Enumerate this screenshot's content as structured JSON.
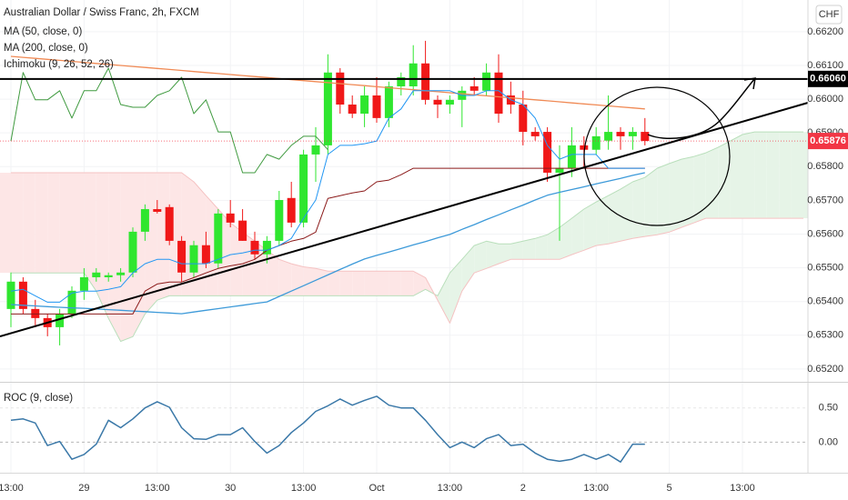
{
  "chart_data": [
    {
      "type": "candlestick",
      "title": "Australian Dollar / Swiss Franc, 2h, FXCM",
      "currency": "CHF",
      "categories": [
        "13:00",
        null,
        null,
        null,
        null,
        null,
        "29",
        null,
        null,
        null,
        null,
        null,
        "13:00",
        null,
        null,
        null,
        null,
        null,
        "30",
        null,
        null,
        null,
        null,
        null,
        "13:00",
        null,
        null,
        null,
        null,
        null,
        "Oct",
        null,
        null,
        null,
        null,
        null,
        "13:00",
        null,
        null,
        null,
        null,
        null,
        "2",
        null,
        null,
        null,
        null,
        null,
        "13:00",
        null,
        null,
        null,
        null,
        null,
        "5",
        null,
        null,
        null,
        null,
        null,
        "13:00",
        null,
        null,
        null,
        null,
        null
      ],
      "open": [
        0.65378,
        0.65459,
        0.65378,
        0.65351,
        0.65324,
        0.65364,
        0.65432,
        0.65472,
        0.65472,
        0.65478,
        0.65486,
        0.65607,
        0.65674,
        0.6568,
        0.6558,
        0.65486,
        0.65567,
        0.65513,
        0.65661,
        0.6564,
        0.6558,
        0.6554,
        0.6558,
        0.65707,
        0.65634,
        0.65836,
        0.65863,
        0.66079,
        0.65984,
        0.65957,
        0.66011,
        0.65944,
        0.66038,
        0.66038,
        0.66106,
        0.65998,
        0.65984,
        0.65998,
        0.66038,
        0.66025,
        0.66079,
        0.66011,
        0.65984,
        0.65903,
        0.65903,
        0.65782,
        0.65796,
        0.65863,
        0.6585,
        0.65877,
        0.65903,
        0.6589,
        0.65903,
        null,
        null,
        null,
        null,
        null,
        null,
        null,
        null,
        null,
        null,
        null,
        null,
        null
      ],
      "high": [
        0.65486,
        0.65472,
        0.65405,
        0.65364,
        0.65378,
        0.65445,
        0.65499,
        0.65499,
        0.65486,
        0.65499,
        0.6562,
        0.65688,
        0.65701,
        0.65688,
        0.65594,
        0.6558,
        0.65607,
        0.65674,
        0.65701,
        0.65674,
        0.65607,
        0.65594,
        0.65728,
        0.65755,
        0.6585,
        0.65917,
        0.66133,
        0.66092,
        0.66011,
        0.66038,
        0.66065,
        0.66052,
        0.66079,
        0.6616,
        0.66173,
        0.66011,
        0.66011,
        0.66038,
        0.66065,
        0.66106,
        0.66133,
        0.66052,
        0.66025,
        0.65917,
        0.65917,
        0.65863,
        0.65917,
        0.6589,
        0.65917,
        0.66011,
        0.65917,
        0.65917,
        0.65944,
        null,
        null,
        null,
        null,
        null,
        null,
        null,
        null,
        null,
        null,
        null,
        null,
        null
      ],
      "low": [
        0.65324,
        0.65364,
        0.65324,
        0.65297,
        0.6527,
        0.65351,
        0.65405,
        0.65459,
        0.65459,
        0.65459,
        0.65472,
        0.6558,
        0.65661,
        0.65567,
        0.65459,
        0.65472,
        0.65499,
        0.65499,
        0.6562,
        0.6558,
        0.65526,
        0.65513,
        0.65567,
        0.6562,
        0.6562,
        0.65755,
        0.65836,
        0.65957,
        0.65944,
        0.65917,
        0.6593,
        0.65917,
        0.66011,
        0.66011,
        0.65984,
        0.65944,
        0.65957,
        0.65917,
        0.66011,
        0.66011,
        0.6593,
        0.65957,
        0.65863,
        0.65877,
        0.65755,
        0.6558,
        0.65769,
        0.65796,
        0.65836,
        0.6585,
        0.6585,
        0.6585,
        0.65863,
        null,
        null,
        null,
        null,
        null,
        null,
        null,
        null,
        null,
        null,
        null,
        null,
        null
      ],
      "close": [
        0.65459,
        0.65378,
        0.65351,
        0.65324,
        0.65364,
        0.65432,
        0.65472,
        0.65486,
        0.65478,
        0.65486,
        0.65607,
        0.65674,
        0.65666,
        0.6558,
        0.65486,
        0.65567,
        0.65513,
        0.65661,
        0.65634,
        0.6558,
        0.6554,
        0.6558,
        0.65701,
        0.65634,
        0.65836,
        0.65863,
        0.66079,
        0.65984,
        0.65957,
        0.66011,
        0.65944,
        0.66038,
        0.66065,
        0.66106,
        0.65998,
        0.65984,
        0.65998,
        0.66025,
        0.66025,
        0.66079,
        0.65957,
        0.65984,
        0.65903,
        0.6589,
        0.65782,
        0.65796,
        0.65863,
        0.6585,
        0.6589,
        0.65903,
        0.6589,
        0.65903,
        0.65876,
        null,
        null,
        null,
        null,
        null,
        null,
        null,
        null,
        null,
        null,
        null,
        null,
        null
      ],
      "up_color": "#2fe62f",
      "down_color": "#f01818",
      "series": [
        {
          "name": "MA (50, close, 0)",
          "color": "#3d9ad9",
          "values": [
            0.65391,
            0.65389,
            0.65387,
            0.65385,
            0.65383,
            0.65381,
            0.6538,
            0.65378,
            0.65376,
            0.65374,
            0.65372,
            0.6537,
            0.65368,
            0.65366,
            0.65364,
            0.65369,
            0.65374,
            0.65379,
            0.65384,
            0.65389,
            0.65394,
            0.65399,
            0.65415,
            0.65431,
            0.65447,
            0.65463,
            0.65479,
            0.65495,
            0.65511,
            0.65526,
            0.65537,
            0.65547,
            0.65557,
            0.65568,
            0.65578,
            0.65589,
            0.65599,
            0.65614,
            0.65628,
            0.65643,
            0.65657,
            0.65672,
            0.65686,
            0.65701,
            0.65715,
            0.65724,
            0.65732,
            0.6574,
            0.65749,
            0.65757,
            0.65765,
            0.65774,
            0.65782,
            null,
            null,
            null,
            null,
            null,
            null,
            null,
            null,
            null,
            null,
            null,
            null,
            null
          ]
        },
        {
          "name": "MA (200, close, 0)",
          "color": "#f08a55",
          "values": [
            0.66127,
            0.66124,
            0.66121,
            0.66118,
            0.66115,
            0.66112,
            0.66109,
            0.66106,
            0.66103,
            0.661,
            0.66097,
            0.66094,
            0.66091,
            0.66088,
            0.66085,
            0.66082,
            0.66079,
            0.66076,
            0.66073,
            0.6607,
            0.66067,
            0.66064,
            0.66061,
            0.66058,
            0.66055,
            0.66052,
            0.66049,
            0.66046,
            0.66043,
            0.6604,
            0.66037,
            0.66034,
            0.66031,
            0.66028,
            0.66025,
            0.66022,
            0.66019,
            0.66016,
            0.66013,
            0.6601,
            0.66007,
            0.66004,
            0.66001,
            0.65998,
            0.65995,
            0.65992,
            0.65989,
            0.65986,
            0.65983,
            0.6598,
            0.65977,
            0.65974,
            0.65971,
            null,
            null,
            null,
            null,
            null,
            null,
            null,
            null,
            null,
            null,
            null,
            null,
            null
          ]
        }
      ],
      "ichimoku": {
        "name": "Ichimoku (9, 26, 52, 26)",
        "cloud_up_color": "#e6f4e7",
        "cloud_down_color": "#fde6e6",
        "conversion": {
          "color": "#2196f3",
          "values": [
            0.65431,
            0.65436,
            0.65417,
            0.65398,
            0.65398,
            0.65425,
            0.65431,
            0.65431,
            0.65436,
            0.65444,
            0.65485,
            0.65512,
            0.65525,
            0.65525,
            0.65512,
            0.65512,
            0.65512,
            0.65525,
            0.65539,
            0.65544,
            0.65552,
            0.65552,
            0.65566,
            0.65587,
            0.65647,
            0.65701,
            0.65836,
            0.65863,
            0.65863,
            0.65868,
            0.65876,
            0.65944,
            0.65971,
            0.66025,
            0.66025,
            0.66025,
            0.66025,
            0.66011,
            0.66011,
            0.66025,
            0.66025,
            0.65998,
            0.65984,
            0.65944,
            0.65863,
            0.65822,
            0.65836,
            0.65836,
            0.65836,
            0.65795,
            0.65795,
            0.65795,
            0.65795,
            null,
            null,
            null,
            null,
            null,
            null,
            null,
            null,
            null,
            null,
            null,
            null,
            null
          ]
        },
        "base": {
          "color": "#8b1a1a",
          "values": [
            0.65363,
            0.65363,
            0.65363,
            0.65363,
            0.65363,
            0.65363,
            0.65363,
            0.65363,
            0.65363,
            0.65363,
            0.65363,
            0.65431,
            0.65452,
            0.65458,
            0.65458,
            0.65471,
            0.65485,
            0.65498,
            0.65506,
            0.65512,
            0.65525,
            0.65552,
            0.65566,
            0.65579,
            0.65587,
            0.65606,
            0.65706,
            0.65714,
            0.65722,
            0.65728,
            0.65755,
            0.6576,
            0.65776,
            0.65795,
            0.65795,
            0.65795,
            0.65795,
            0.65795,
            0.65795,
            0.65795,
            0.65795,
            0.65795,
            0.65795,
            0.65795,
            0.65795,
            0.65795,
            0.65795,
            0.65795,
            0.65795,
            0.65795,
            0.65795,
            0.65795,
            0.65795,
            null,
            null,
            null,
            null,
            null,
            null,
            null,
            null,
            null,
            null,
            null,
            null,
            null
          ]
        },
        "lagging": {
          "color": "#3f9a3f",
          "values": [
            0.65876,
            0.66079,
            0.65998,
            0.65998,
            0.66025,
            0.65944,
            0.66025,
            0.66025,
            0.66092,
            0.65984,
            0.65976,
            0.65976,
            0.66011,
            0.66025,
            0.66065,
            0.65957,
            0.65998,
            0.65903,
            0.65903,
            0.65782,
            0.65782,
            0.65836,
            0.65822,
            0.65863,
            0.6589,
            0.6589,
            0.6585,
            null,
            null,
            null,
            null,
            null,
            null,
            null,
            null,
            null,
            null,
            null,
            null,
            null,
            null,
            null,
            null,
            null,
            null,
            null,
            null,
            null,
            null,
            null,
            null,
            null,
            null,
            null,
            null,
            null,
            null,
            null,
            null,
            null,
            null,
            null,
            null,
            null,
            null,
            null
          ]
        },
        "span_a": {
          "color": "#b9dfbb",
          "values": [
            0.65485,
            0.65485,
            0.65485,
            0.65485,
            0.65485,
            0.65485,
            0.65485,
            0.65431,
            0.6535,
            0.65282,
            0.65296,
            0.65363,
            0.65404,
            0.65417,
            0.65417,
            0.65417,
            0.65417,
            0.65417,
            0.65417,
            0.65417,
            0.65417,
            0.65417,
            0.65417,
            0.65417,
            0.65417,
            0.65417,
            0.65417,
            0.65417,
            0.65417,
            0.65417,
            0.65417,
            0.65417,
            0.65417,
            0.65417,
            0.65436,
            0.65417,
            0.65485,
            0.65525,
            0.65566,
            0.65579,
            0.65571,
            0.65571,
            0.65579,
            0.65587,
            0.65598,
            0.6562,
            0.65647,
            0.65674,
            0.65695,
            0.65714,
            0.65733,
            0.65755,
            0.65768,
            0.65795,
            0.65809,
            0.65822,
            0.6583,
            0.65841,
            0.65857,
            0.65876,
            0.65895,
            0.65903,
            0.65903,
            0.65903,
            0.65903,
            0.65903
          ]
        },
        "span_b": {
          "color": "#f5c2c2",
          "values": [
            0.65782,
            0.65782,
            0.65782,
            0.65782,
            0.65782,
            0.65782,
            0.65782,
            0.65782,
            0.65782,
            0.65782,
            0.65782,
            0.65782,
            0.65782,
            0.65782,
            0.65782,
            0.65755,
            0.65714,
            0.65674,
            0.65633,
            0.65606,
            0.65579,
            0.65552,
            0.65525,
            0.65512,
            0.65503,
            0.65498,
            0.6549,
            0.6549,
            0.6549,
            0.6549,
            0.6549,
            0.6549,
            0.6549,
            0.6549,
            0.65471,
            0.65404,
            0.65336,
            0.65431,
            0.65485,
            0.65498,
            0.65512,
            0.65525,
            0.65525,
            0.65525,
            0.65525,
            0.65525,
            0.65539,
            0.65552,
            0.65566,
            0.65571,
            0.65579,
            0.65587,
            0.65593,
            0.65598,
            0.65606,
            0.6562,
            0.65633,
            0.65647,
            0.65647,
            0.65647,
            0.65647,
            0.65647,
            0.65647,
            0.65647,
            0.65647,
            0.65647
          ]
        }
      },
      "price_lines": [
        {
          "value": 0.6606,
          "label": "0.66060",
          "color": "#000000",
          "style": "solid"
        },
        {
          "value": 0.65876,
          "label": "0.65876",
          "color": "#f23645",
          "style": "dashed"
        }
      ],
      "ylim": [
        0.65162,
        0.66294
      ],
      "yticks": [
        {
          "value": 0.662,
          "label": "0.66200"
        },
        {
          "value": 0.661,
          "label": "0.66100"
        },
        {
          "value": 0.66,
          "label": "0.66000"
        },
        {
          "value": 0.659,
          "label": "0.65900"
        },
        {
          "value": 0.658,
          "label": "0.65800"
        },
        {
          "value": 0.657,
          "label": "0.65700"
        },
        {
          "value": 0.656,
          "label": "0.65600"
        },
        {
          "value": 0.655,
          "label": "0.65500"
        },
        {
          "value": 0.654,
          "label": "0.65400"
        },
        {
          "value": 0.653,
          "label": "0.65300"
        },
        {
          "value": 0.652,
          "label": "0.65200"
        }
      ],
      "grid": true
    },
    {
      "type": "line",
      "title": "ROC (9, close)",
      "color": "#3a78a8",
      "values": [
        0.32,
        0.34,
        0.28,
        -0.05,
        0.01,
        -0.25,
        -0.18,
        -0.03,
        0.32,
        0.21,
        0.34,
        0.5,
        0.59,
        0.51,
        0.21,
        0.05,
        0.04,
        0.11,
        0.11,
        0.21,
        0.01,
        -0.16,
        -0.05,
        0.14,
        0.28,
        0.45,
        0.53,
        0.63,
        0.54,
        0.61,
        0.67,
        0.54,
        0.5,
        0.5,
        0.32,
        0.11,
        -0.08,
        0,
        -0.08,
        0.05,
        0.11,
        -0.05,
        -0.03,
        -0.16,
        -0.25,
        -0.28,
        -0.25,
        -0.18,
        -0.25,
        -0.18,
        -0.29,
        -0.03,
        -0.03,
        null,
        null,
        null,
        null,
        null,
        null,
        null,
        null,
        null,
        null,
        null,
        null,
        null
      ],
      "ylim": [
        -0.447,
        0.868
      ],
      "yticks": [
        {
          "value": 0.5,
          "label": "0.50"
        },
        {
          "value": 0,
          "label": "0.00"
        }
      ],
      "grid": true
    }
  ]
}
